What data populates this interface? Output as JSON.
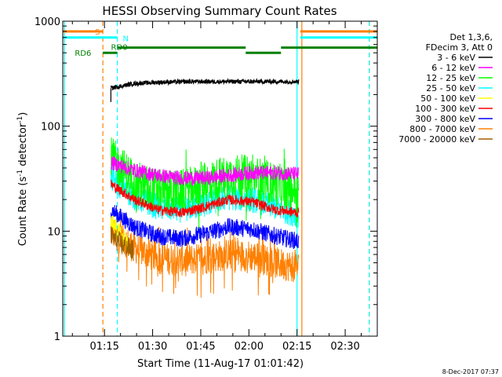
{
  "chart_data": {
    "type": "line",
    "title": "HESSI Observing Summary Count Rates",
    "xlabel": "Start Time (11-Aug-17 01:01:42)",
    "ylabel_main": "Count Rate (s",
    "ylabel_sup1": "-1",
    "ylabel_mid": " detector",
    "ylabel_sup2": "-1",
    "ylabel_end": ")",
    "yscale": "log",
    "xlim_min": [
      62,
      160
    ],
    "ylim": [
      1,
      1000
    ],
    "x_ticks": [
      {
        "min": 75,
        "label": "01:15"
      },
      {
        "min": 90,
        "label": "01:30"
      },
      {
        "min": 105,
        "label": "01:45"
      },
      {
        "min": 120,
        "label": "02:00"
      },
      {
        "min": 135,
        "label": "02:15"
      },
      {
        "min": 150,
        "label": "02:30"
      }
    ],
    "y_ticks": [
      {
        "value": 1,
        "label": "1"
      },
      {
        "value": 10,
        "label": "10"
      },
      {
        "value": 100,
        "label": "100"
      },
      {
        "value": 1000,
        "label": "1000"
      }
    ],
    "legend": {
      "header": [
        "Det 1,3,6,",
        "FDecim 3, Att 0"
      ],
      "entries": [
        {
          "label": "3 - 6 keV",
          "color": "#000000"
        },
        {
          "label": "6 - 12 keV",
          "color": "#ff00ff"
        },
        {
          "label": "12 - 25 keV",
          "color": "#00ff00"
        },
        {
          "label": "25 - 50 keV",
          "color": "#00ffff"
        },
        {
          "label": "50 - 100 keV",
          "color": "#ffff00"
        },
        {
          "label": "100 - 300 keV",
          "color": "#ff0000"
        },
        {
          "label": "300 - 800 keV",
          "color": "#0000ff"
        },
        {
          "label": "800 - 7000 keV",
          "color": "#ff8000"
        },
        {
          "label": "7000 - 20000 keV",
          "color": "#a06000"
        }
      ]
    },
    "series": [
      {
        "name": "3 - 6 keV",
        "color": "#000000",
        "x_start": 77,
        "x_end": 135.5,
        "values": [
          230,
          255,
          262,
          265,
          266,
          266,
          266,
          266,
          266
        ],
        "noise": 0.03
      },
      {
        "name": "6 - 12 keV",
        "color": "#ff00ff",
        "x_start": 77,
        "x_end": 135.5,
        "values": [
          45,
          38,
          34,
          32,
          32,
          34,
          36,
          36,
          35
        ],
        "noise": 0.1
      },
      {
        "name": "12 - 25 keV",
        "color": "#00ff00",
        "x_start": 77,
        "x_end": 135.5,
        "values": [
          50,
          30,
          24,
          24,
          28,
          34,
          33,
          28,
          24
        ],
        "noise": 0.3
      },
      {
        "name": "25 - 50 keV",
        "color": "#00ffff",
        "x_start": 77,
        "x_end": 135.5,
        "values": [
          32,
          21,
          17,
          16,
          18,
          21,
          20,
          17,
          14
        ],
        "noise": 0.18
      },
      {
        "name": "50 - 100 keV",
        "color": "#ffff00",
        "x_start": 77,
        "x_end": 83,
        "values": [
          12,
          9,
          7
        ],
        "noise": 0.15
      },
      {
        "name": "100 - 300 keV",
        "color": "#ff0000",
        "x_start": 77,
        "x_end": 135.5,
        "values": [
          28,
          20,
          16,
          15,
          17,
          20,
          19,
          16,
          15
        ],
        "noise": 0.07
      },
      {
        "name": "300 - 800 keV",
        "color": "#0000ff",
        "x_start": 77,
        "x_end": 135.5,
        "values": [
          16,
          11,
          9,
          8.5,
          9.5,
          11,
          10.5,
          9,
          8
        ],
        "noise": 0.12
      },
      {
        "name": "800 - 7000 keV",
        "color": "#ff8000",
        "x_start": 77,
        "x_end": 135.5,
        "values": [
          10,
          7,
          5.5,
          5.3,
          5.5,
          6,
          5.8,
          5,
          4.5
        ],
        "noise": 0.22
      },
      {
        "name": "7000 - 20000 keV",
        "color": "#a06000",
        "x_start": 77,
        "x_end": 84,
        "values": [
          9,
          7.5,
          6.5
        ],
        "noise": 0.15
      }
    ],
    "flag_bars": [
      {
        "label": "S",
        "color": "#ff8000",
        "level": 800,
        "segments": [
          [
            62,
            74.5
          ],
          [
            136,
            160
          ]
        ]
      },
      {
        "label": "N",
        "color": "#00ffff",
        "level": 700,
        "segments": [
          [
            62,
            79
          ],
          [
            136,
            160
          ]
        ]
      },
      {
        "label": "RD0",
        "color": "#008000",
        "level": 560,
        "segments": [
          [
            79,
            119
          ],
          [
            119,
            130
          ],
          [
            130,
            160
          ]
        ]
      },
      {
        "label": "RD6",
        "color": "#008000",
        "level": 500,
        "segments": [
          [
            74.5,
            79
          ]
        ]
      }
    ],
    "vlines": [
      {
        "x": 74.5,
        "color": "#ff8000",
        "dash": true
      },
      {
        "x": 79,
        "color": "#00ffff",
        "dash": true
      },
      {
        "x": 62.5,
        "color": "#00ffff",
        "dash": false
      },
      {
        "x": 135,
        "color": "#00ffff",
        "dash": false
      },
      {
        "x": 136.5,
        "color": "#ff8000",
        "dash": false
      },
      {
        "x": 157.5,
        "color": "#ff8000",
        "dash": true
      },
      {
        "x": 157.5,
        "color": "#00ffff",
        "dash": true
      }
    ],
    "footer": "8-Dec-2017 07:37"
  }
}
